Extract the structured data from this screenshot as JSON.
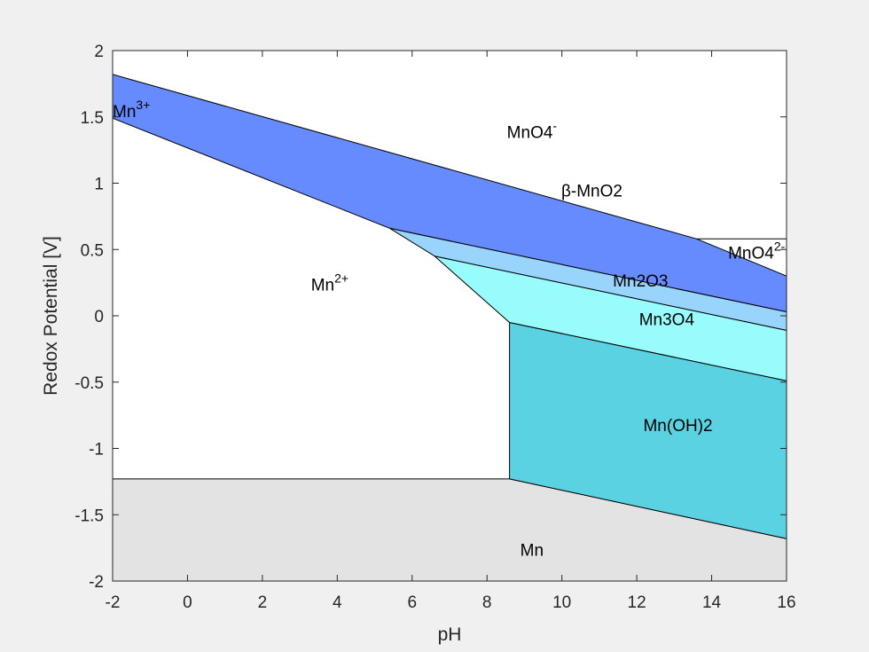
{
  "chart_data": {
    "type": "area",
    "title": "",
    "xlabel": "pH",
    "ylabel": "Redox Potential [V]",
    "xlim": [
      -2,
      16
    ],
    "ylim": [
      -2,
      2
    ],
    "xticks": [
      -2,
      0,
      2,
      4,
      6,
      8,
      10,
      12,
      14,
      16
    ],
    "xtick_labels": [
      "-2",
      "0",
      "2",
      "4",
      "6",
      "8",
      "10",
      "12",
      "14",
      "16"
    ],
    "yticks": [
      -2,
      -1.5,
      -1,
      -0.5,
      0,
      0.5,
      1,
      1.5,
      2
    ],
    "ytick_labels": [
      "-2",
      "-1.5",
      "-1",
      "-0.5",
      "0",
      "0.5",
      "1",
      "1.5",
      "2"
    ],
    "grid": false,
    "regions": [
      {
        "name": "Mn",
        "color": "#e3e3e3",
        "polygon": [
          [
            -2,
            -1.23
          ],
          [
            8.6,
            -1.23
          ],
          [
            16,
            -1.68
          ],
          [
            16,
            -2
          ],
          [
            -2,
            -2
          ]
        ]
      },
      {
        "name": "Mn(OH)2",
        "color": "#5bd2e2",
        "polygon": [
          [
            8.6,
            -0.05
          ],
          [
            16,
            -0.49
          ],
          [
            16,
            -1.68
          ],
          [
            8.6,
            -1.23
          ]
        ]
      },
      {
        "name": "Mn3O4",
        "color": "#99fcfc",
        "polygon": [
          [
            6.6,
            0.45
          ],
          [
            16,
            -0.11
          ],
          [
            16,
            -0.49
          ],
          [
            8.6,
            -0.05
          ]
        ]
      },
      {
        "name": "Mn2O3",
        "color": "#99d4fc",
        "polygon": [
          [
            5.4,
            0.66
          ],
          [
            16,
            0.03
          ],
          [
            16,
            -0.11
          ],
          [
            6.6,
            0.45
          ]
        ]
      },
      {
        "name": "β-MnO2",
        "color": "#668aff",
        "polygon": [
          [
            -2,
            1.82
          ],
          [
            13.6,
            0.58
          ],
          [
            16,
            0.3
          ],
          [
            16,
            0.03
          ],
          [
            5.4,
            0.66
          ],
          [
            -2,
            1.49
          ]
        ]
      }
    ],
    "lines": [
      [
        [
          13.6,
          0.58
        ],
        [
          16,
          0.58
        ]
      ]
    ],
    "labels": [
      {
        "text": "Mn",
        "sup": "3+",
        "x": -2,
        "y": 1.5,
        "anchor": "start"
      },
      {
        "text": "MnO4",
        "sup": "-",
        "x": 9.2,
        "y": 1.34,
        "anchor": "middle"
      },
      {
        "text": "β-MnO2",
        "sup": "",
        "x": 10.8,
        "y": 0.9,
        "anchor": "middle"
      },
      {
        "text": "MnO4",
        "sup": "2-",
        "x": 15.2,
        "y": 0.43,
        "anchor": "middle"
      },
      {
        "text": "Mn",
        "sup": "2+",
        "x": 3.8,
        "y": 0.19,
        "anchor": "middle"
      },
      {
        "text": "Mn2O3",
        "sup": "",
        "x": 12.1,
        "y": 0.22,
        "anchor": "middle"
      },
      {
        "text": "Mn3O4",
        "sup": "",
        "x": 12.8,
        "y": -0.07,
        "anchor": "middle"
      },
      {
        "text": "Mn(OH)2",
        "sup": "",
        "x": 13.1,
        "y": -0.87,
        "anchor": "middle"
      },
      {
        "text": "Mn",
        "sup": "",
        "x": 9.2,
        "y": -1.81,
        "anchor": "middle"
      }
    ]
  }
}
